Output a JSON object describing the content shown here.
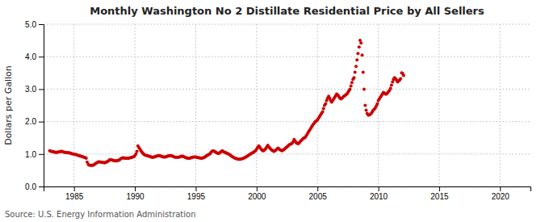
{
  "chart_data": {
    "type": "scatter",
    "title": "Monthly Washington No 2 Distillate Residential Price by All Sellers",
    "ylabel": "Dollars per Gallon",
    "annotations": [
      "Source: U.S. Energy Information Administration"
    ],
    "color": "#cc0000",
    "grid": true,
    "xlim": [
      1982.5,
      2022.5
    ],
    "ylim": [
      0.0,
      5.0
    ],
    "xticks": [
      1985,
      1990,
      1995,
      2000,
      2005,
      2010,
      2015,
      2020
    ],
    "yticks": [
      {
        "value": 0.0,
        "label": "0.0"
      },
      {
        "value": 1.0,
        "label": "1.0"
      },
      {
        "value": 2.0,
        "label": "2.0"
      },
      {
        "value": 3.0,
        "label": "3.0"
      },
      {
        "value": 4.0,
        "label": "4.0"
      },
      {
        "value": 5.0,
        "label": "5.0"
      }
    ],
    "x": [
      1983.0,
      1983.08,
      1983.17,
      1983.25,
      1983.33,
      1983.42,
      1983.5,
      1983.58,
      1983.67,
      1983.75,
      1983.83,
      1983.92,
      1984.0,
      1984.08,
      1984.17,
      1984.25,
      1984.33,
      1984.42,
      1984.5,
      1984.58,
      1984.67,
      1984.75,
      1984.83,
      1984.92,
      1985.0,
      1985.08,
      1985.17,
      1985.25,
      1985.33,
      1985.42,
      1985.5,
      1985.58,
      1985.67,
      1985.75,
      1985.83,
      1985.92,
      1986.0,
      1986.08,
      1986.17,
      1986.25,
      1986.33,
      1986.42,
      1986.5,
      1986.58,
      1986.67,
      1986.75,
      1986.83,
      1986.92,
      1987.0,
      1987.08,
      1987.17,
      1987.25,
      1987.33,
      1987.42,
      1987.5,
      1987.58,
      1987.67,
      1987.75,
      1987.83,
      1987.92,
      1988.0,
      1988.08,
      1988.17,
      1988.25,
      1988.33,
      1988.42,
      1988.5,
      1988.58,
      1988.67,
      1988.75,
      1988.83,
      1988.92,
      1989.0,
      1989.08,
      1989.17,
      1989.25,
      1989.33,
      1989.42,
      1989.5,
      1989.58,
      1989.67,
      1989.75,
      1989.83,
      1989.92,
      1990.0,
      1990.08,
      1990.17,
      1990.25,
      1990.33,
      1990.42,
      1990.5,
      1990.58,
      1990.67,
      1990.75,
      1990.83,
      1990.92,
      1991.0,
      1991.08,
      1991.17,
      1991.25,
      1991.33,
      1991.42,
      1991.5,
      1991.58,
      1991.67,
      1991.75,
      1991.83,
      1991.92,
      1992.0,
      1992.08,
      1992.17,
      1992.25,
      1992.33,
      1992.42,
      1992.5,
      1992.58,
      1992.67,
      1992.75,
      1992.83,
      1992.92,
      1993.0,
      1993.08,
      1993.17,
      1993.25,
      1993.33,
      1993.42,
      1993.5,
      1993.58,
      1993.67,
      1993.75,
      1993.83,
      1993.92,
      1994.0,
      1994.08,
      1994.17,
      1994.25,
      1994.33,
      1994.42,
      1994.5,
      1994.58,
      1994.67,
      1994.75,
      1994.83,
      1994.92,
      1995.0,
      1995.08,
      1995.17,
      1995.25,
      1995.33,
      1995.42,
      1995.5,
      1995.58,
      1995.67,
      1995.75,
      1995.83,
      1995.92,
      1996.0,
      1996.08,
      1996.17,
      1996.25,
      1996.33,
      1996.42,
      1996.5,
      1996.58,
      1996.67,
      1996.75,
      1996.83,
      1996.92,
      1997.0,
      1997.08,
      1997.17,
      1997.25,
      1997.33,
      1997.42,
      1997.5,
      1997.58,
      1997.67,
      1997.75,
      1997.83,
      1997.92,
      1998.0,
      1998.08,
      1998.17,
      1998.25,
      1998.33,
      1998.42,
      1998.5,
      1998.58,
      1998.67,
      1998.75,
      1998.83,
      1998.92,
      1999.0,
      1999.08,
      1999.17,
      1999.25,
      1999.33,
      1999.42,
      1999.5,
      1999.58,
      1999.67,
      1999.75,
      1999.83,
      1999.92,
      2000.0,
      2000.08,
      2000.17,
      2000.25,
      2000.33,
      2000.42,
      2000.5,
      2000.58,
      2000.67,
      2000.75,
      2000.83,
      2000.92,
      2001.0,
      2001.08,
      2001.17,
      2001.25,
      2001.33,
      2001.42,
      2001.5,
      2001.58,
      2001.67,
      2001.75,
      2001.83,
      2001.92,
      2002.0,
      2002.08,
      2002.17,
      2002.25,
      2002.33,
      2002.42,
      2002.5,
      2002.58,
      2002.67,
      2002.75,
      2002.83,
      2002.92,
      2003.0,
      2003.08,
      2003.17,
      2003.25,
      2003.33,
      2003.42,
      2003.5,
      2003.58,
      2003.67,
      2003.75,
      2003.83,
      2003.92,
      2004.0,
      2004.08,
      2004.17,
      2004.25,
      2004.33,
      2004.42,
      2004.5,
      2004.58,
      2004.67,
      2004.75,
      2004.83,
      2004.92,
      2005.0,
      2005.08,
      2005.17,
      2005.25,
      2005.33,
      2005.42,
      2005.5,
      2005.58,
      2005.67,
      2005.75,
      2005.83,
      2005.92,
      2006.0,
      2006.08,
      2006.17,
      2006.25,
      2006.33,
      2006.42,
      2006.5,
      2006.58,
      2006.67,
      2006.75,
      2006.83,
      2006.92,
      2007.0,
      2007.08,
      2007.17,
      2007.25,
      2007.33,
      2007.42,
      2007.5,
      2007.58,
      2007.67,
      2007.75,
      2007.83,
      2007.92,
      2008.0,
      2008.08,
      2008.17,
      2008.25,
      2008.33,
      2008.42,
      2008.5,
      2008.58,
      2008.67,
      2008.75,
      2008.83,
      2008.92,
      2009.0,
      2009.08,
      2009.17,
      2009.25,
      2009.33,
      2009.42,
      2009.5,
      2009.58,
      2009.67,
      2009.75,
      2009.83,
      2009.92,
      2010.0,
      2010.08,
      2010.17,
      2010.25,
      2010.33,
      2010.42,
      2010.5,
      2010.58,
      2010.67,
      2010.75,
      2010.83,
      2010.92,
      2011.0,
      2011.08,
      2011.17,
      2011.25,
      2011.33,
      2011.42,
      2011.5,
      2011.58,
      2011.67,
      2011.75,
      2011.83,
      2011.92,
      2012.0,
      2012.08
    ],
    "values": [
      1.1,
      1.09,
      1.08,
      1.07,
      1.07,
      1.06,
      1.05,
      1.05,
      1.06,
      1.07,
      1.07,
      1.08,
      1.08,
      1.07,
      1.06,
      1.05,
      1.05,
      1.04,
      1.04,
      1.04,
      1.03,
      1.02,
      1.01,
      1.0,
      1.0,
      0.99,
      0.98,
      0.97,
      0.96,
      0.95,
      0.94,
      0.93,
      0.92,
      0.91,
      0.9,
      0.89,
      0.87,
      0.75,
      0.68,
      0.66,
      0.65,
      0.65,
      0.65,
      0.66,
      0.68,
      0.7,
      0.72,
      0.74,
      0.76,
      0.76,
      0.75,
      0.75,
      0.74,
      0.74,
      0.73,
      0.74,
      0.75,
      0.77,
      0.79,
      0.82,
      0.83,
      0.82,
      0.81,
      0.8,
      0.79,
      0.79,
      0.79,
      0.8,
      0.81,
      0.83,
      0.85,
      0.87,
      0.88,
      0.88,
      0.87,
      0.87,
      0.87,
      0.87,
      0.87,
      0.88,
      0.89,
      0.9,
      0.91,
      0.92,
      0.95,
      1.0,
      1.08,
      1.25,
      1.2,
      1.15,
      1.1,
      1.06,
      1.02,
      0.99,
      0.97,
      0.96,
      0.95,
      0.94,
      0.93,
      0.92,
      0.91,
      0.9,
      0.9,
      0.91,
      0.92,
      0.93,
      0.94,
      0.95,
      0.95,
      0.94,
      0.93,
      0.92,
      0.91,
      0.91,
      0.91,
      0.92,
      0.93,
      0.94,
      0.95,
      0.95,
      0.95,
      0.93,
      0.92,
      0.91,
      0.9,
      0.9,
      0.9,
      0.9,
      0.91,
      0.92,
      0.93,
      0.93,
      0.92,
      0.91,
      0.89,
      0.88,
      0.87,
      0.87,
      0.87,
      0.88,
      0.89,
      0.9,
      0.91,
      0.91,
      0.91,
      0.9,
      0.89,
      0.88,
      0.88,
      0.87,
      0.87,
      0.88,
      0.89,
      0.91,
      0.93,
      0.95,
      0.97,
      0.99,
      1.01,
      1.05,
      1.08,
      1.1,
      1.09,
      1.07,
      1.05,
      1.03,
      1.02,
      1.02,
      1.05,
      1.07,
      1.1,
      1.08,
      1.06,
      1.05,
      1.03,
      1.02,
      1.01,
      0.99,
      0.97,
      0.94,
      0.92,
      0.9,
      0.88,
      0.87,
      0.86,
      0.85,
      0.84,
      0.84,
      0.84,
      0.85,
      0.86,
      0.87,
      0.88,
      0.9,
      0.92,
      0.94,
      0.96,
      0.98,
      1.0,
      1.02,
      1.04,
      1.06,
      1.08,
      1.1,
      1.15,
      1.2,
      1.25,
      1.22,
      1.17,
      1.13,
      1.1,
      1.11,
      1.13,
      1.17,
      1.22,
      1.27,
      1.22,
      1.18,
      1.15,
      1.12,
      1.1,
      1.08,
      1.1,
      1.12,
      1.15,
      1.18,
      1.16,
      1.13,
      1.12,
      1.1,
      1.12,
      1.14,
      1.17,
      1.2,
      1.22,
      1.25,
      1.28,
      1.3,
      1.31,
      1.33,
      1.38,
      1.45,
      1.4,
      1.35,
      1.33,
      1.32,
      1.35,
      1.38,
      1.42,
      1.45,
      1.48,
      1.5,
      1.52,
      1.57,
      1.62,
      1.67,
      1.72,
      1.77,
      1.82,
      1.87,
      1.92,
      1.96,
      2.0,
      2.02,
      2.05,
      2.1,
      2.15,
      2.2,
      2.25,
      2.3,
      2.4,
      2.5,
      2.55,
      2.65,
      2.72,
      2.78,
      2.72,
      2.65,
      2.6,
      2.65,
      2.7,
      2.75,
      2.8,
      2.85,
      2.82,
      2.78,
      2.73,
      2.7,
      2.72,
      2.75,
      2.78,
      2.8,
      2.83,
      2.85,
      2.9,
      2.95,
      3.0,
      3.1,
      3.2,
      3.3,
      3.35,
      3.52,
      3.7,
      3.9,
      4.1,
      4.3,
      4.5,
      4.42,
      4.05,
      3.52,
      3.0,
      2.5,
      2.35,
      2.25,
      2.2,
      2.2,
      2.22,
      2.25,
      2.3,
      2.35,
      2.38,
      2.42,
      2.48,
      2.55,
      2.65,
      2.7,
      2.75,
      2.8,
      2.85,
      2.9,
      2.88,
      2.85,
      2.85,
      2.88,
      2.92,
      2.96,
      3.02,
      3.12,
      3.22,
      3.3,
      3.35,
      3.32,
      3.28,
      3.22,
      3.25,
      3.28,
      3.32,
      3.5,
      3.48,
      3.42
    ]
  }
}
